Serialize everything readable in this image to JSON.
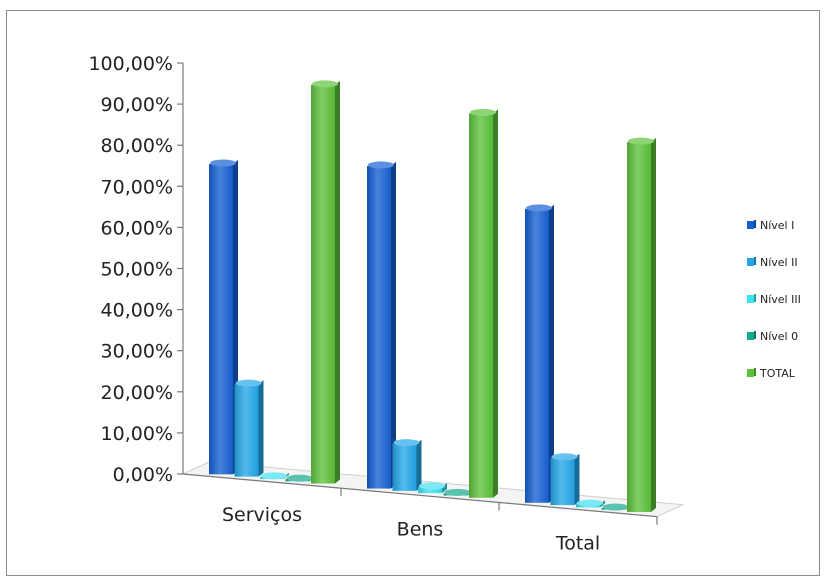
{
  "chart_data": {
    "type": "bar",
    "title": "",
    "xlabel": "",
    "ylabel": "",
    "categories": [
      "Serviços",
      "Bens",
      "Total"
    ],
    "series": [
      {
        "name": "Nível I",
        "values": [
          75.5,
          78.5,
          71.5
        ]
      },
      {
        "name": "Nível II",
        "values": [
          22.5,
          11.5,
          11.5
        ]
      },
      {
        "name": "Nível III",
        "values": [
          0.5,
          1.5,
          0.8
        ]
      },
      {
        "name": "Nível 0",
        "values": [
          0.5,
          0.5,
          0.4
        ]
      },
      {
        "name": "TOTAL",
        "values": [
          97,
          93.5,
          90
        ]
      }
    ],
    "yticks": [
      "0,00%",
      "10,00%",
      "20,00%",
      "30,00%",
      "40,00%",
      "50,00%",
      "60,00%",
      "70,00%",
      "80,00%",
      "90,00%",
      "100,00%"
    ],
    "ylim": [
      0,
      100
    ],
    "grid": false,
    "legend_position": "right",
    "colors": [
      "#1560d4",
      "#23a7e8",
      "#3fe0f0",
      "#15a88c",
      "#5cc23a"
    ]
  }
}
